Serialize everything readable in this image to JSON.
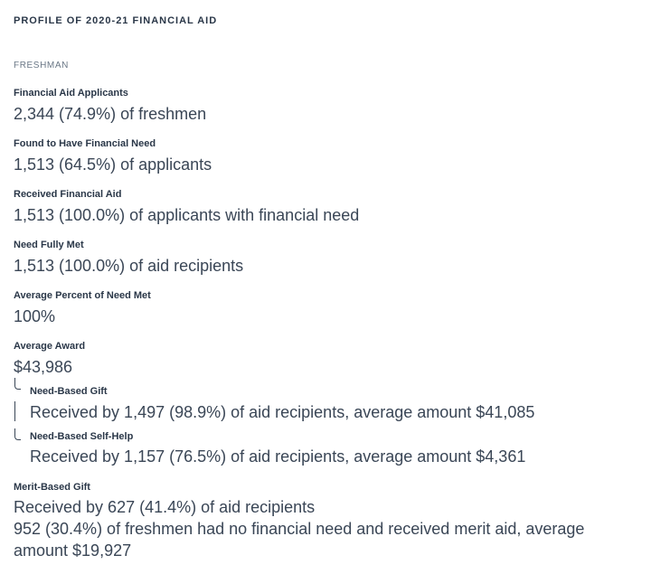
{
  "header": {
    "title": "PROFILE OF 2020-21 FINANCIAL AID"
  },
  "freshman": {
    "heading": "FRESHMAN",
    "applicants_label": "Financial Aid Applicants",
    "applicants_value": "2,344 (74.9%) of freshmen",
    "need_label": "Found to Have Financial Need",
    "need_value": "1,513 (64.5%) of applicants",
    "received_label": "Received Financial Aid",
    "received_value": "1,513 (100.0%) of applicants with financial need",
    "fully_met_label": "Need Fully Met",
    "fully_met_value": "1,513 (100.0%) of aid recipients",
    "avg_percent_label": "Average Percent of Need Met",
    "avg_percent_value": "100%",
    "avg_award_label": "Average Award",
    "avg_award_value": "$43,986",
    "need_gift_label": "Need-Based Gift",
    "need_gift_value": "Received by 1,497 (98.9%) of aid recipients, average amount $41,085",
    "self_help_label": "Need-Based Self-Help",
    "self_help_value": "Received by 1,157 (76.5%) of aid recipients, average amount $4,361",
    "merit_label": "Merit-Based Gift",
    "merit_value_1": "Received by 627 (41.4%) of aid recipients",
    "merit_value_2": "952 (30.4%) of freshmen had no financial need and received merit aid, average",
    "merit_value_3": "amount $19,927"
  }
}
